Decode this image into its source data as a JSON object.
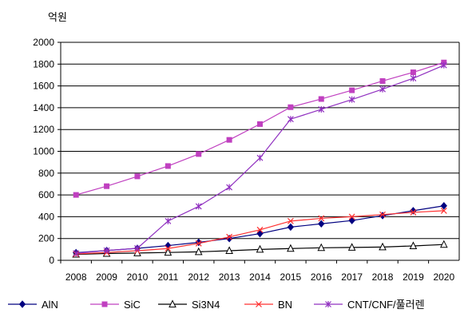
{
  "chart_data": {
    "type": "line",
    "unit_label": "억원",
    "ylim": [
      0,
      2000
    ],
    "yticks": [
      0,
      200,
      400,
      600,
      800,
      1000,
      1200,
      1400,
      1600,
      1800,
      2000
    ],
    "categories": [
      "2008",
      "2009",
      "2010",
      "2011",
      "2012",
      "2013",
      "2014",
      "2015",
      "2016",
      "2017",
      "2018",
      "2019",
      "2020"
    ],
    "grid": true,
    "legend_position": "bottom",
    "series": [
      {
        "name": "AlN",
        "color": "#000080",
        "marker": "diamond",
        "values": [
          70,
          90,
          110,
          135,
          165,
          200,
          245,
          305,
          335,
          365,
          410,
          455,
          500
        ]
      },
      {
        "name": "SiC",
        "color": "#c040c0",
        "marker": "square",
        "values": [
          600,
          680,
          770,
          865,
          975,
          1105,
          1250,
          1405,
          1480,
          1560,
          1645,
          1725,
          1815
        ]
      },
      {
        "name": "Si3N4",
        "color": "#000000",
        "marker": "triangle",
        "values": [
          55,
          62,
          67,
          72,
          78,
          88,
          100,
          108,
          115,
          118,
          122,
          132,
          145
        ]
      },
      {
        "name": "BN",
        "color": "#ff3030",
        "marker": "x",
        "values": [
          58,
          72,
          88,
          108,
          155,
          215,
          280,
          360,
          385,
          400,
          420,
          440,
          455
        ]
      },
      {
        "name": "CNT/CNF/풀러렌",
        "color": "#9030c0",
        "marker": "star",
        "values": [
          65,
          90,
          110,
          360,
          495,
          670,
          940,
          1295,
          1385,
          1475,
          1570,
          1670,
          1790
        ]
      }
    ]
  }
}
